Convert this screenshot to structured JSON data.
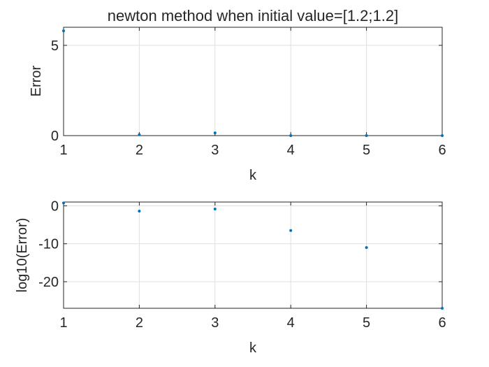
{
  "chart_data": [
    {
      "type": "scatter",
      "title": "newton method when initial value=[1.2;1.2]",
      "xlabel": "k",
      "ylabel": "Error",
      "xlim": [
        1,
        6
      ],
      "ylim": [
        0,
        6
      ],
      "xticks": [
        "1",
        "2",
        "3",
        "4",
        "5",
        "6"
      ],
      "yticks": [
        "0",
        "5"
      ],
      "grid": true,
      "marker_color": "#0072BD",
      "series": [
        {
          "x": [
            1,
            2,
            3,
            4,
            5,
            6
          ],
          "y": [
            5.8,
            0.05,
            0.15,
            0.0,
            0.0,
            0.0
          ]
        }
      ]
    },
    {
      "type": "scatter",
      "title": "",
      "xlabel": "k",
      "ylabel": "log10(Error)",
      "xlim": [
        1,
        6
      ],
      "ylim": [
        -27,
        1
      ],
      "xticks": [
        "1",
        "2",
        "3",
        "4",
        "5",
        "6"
      ],
      "yticks": [
        "0",
        "-10",
        "-20"
      ],
      "grid": true,
      "marker_color": "#0072BD",
      "series": [
        {
          "x": [
            1,
            2,
            3,
            4,
            5,
            6
          ],
          "y": [
            0.75,
            -1.4,
            -0.85,
            -6.5,
            -11.0,
            -27.0
          ]
        }
      ]
    }
  ]
}
